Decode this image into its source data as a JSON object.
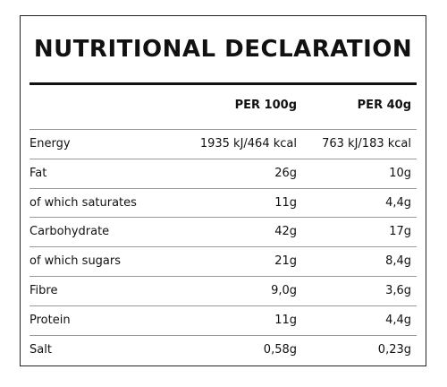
{
  "title": "NUTRITIONAL DECLARATION",
  "table": {
    "header": [
      "PER 100g",
      "PER 40g"
    ],
    "rows": [
      [
        "Energy",
        "1935 kJ/464 kcal",
        "763 kJ/183 kcal"
      ],
      [
        "Fat",
        "26g",
        "10g"
      ],
      [
        "of which saturates",
        "11g",
        "4,4g"
      ],
      [
        "Carbohydrate",
        "42g",
        "17g"
      ],
      [
        "of which sugars",
        "21g",
        "8,4g"
      ],
      [
        "Fibre",
        "9,0g",
        "3,6g"
      ],
      [
        "Protein",
        "11g",
        "4,4g"
      ],
      [
        "Salt",
        "0,58g",
        "0,23g"
      ]
    ]
  }
}
